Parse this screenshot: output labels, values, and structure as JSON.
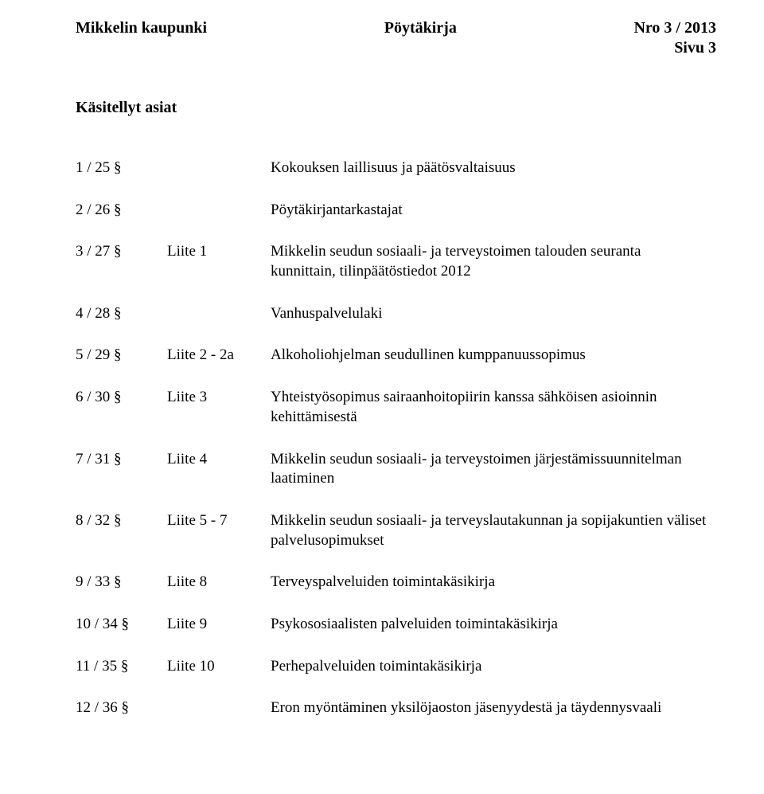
{
  "header": {
    "left": "Mikkelin kaupunki",
    "middle": "Pöytäkirja",
    "right": "Nro  3 / 2013",
    "sub": "Sivu  3"
  },
  "section_title": "Käsitellyt asiat",
  "items": [
    {
      "id": "1 / 25 §",
      "attachment": "",
      "text": "Kokouksen laillisuus ja päätösvaltaisuus"
    },
    {
      "id": "2 / 26 §",
      "attachment": "",
      "text": "Pöytäkirjantarkastajat"
    },
    {
      "id": "3 / 27 §",
      "attachment": "Liite 1",
      "text": "Mikkelin seudun sosiaali- ja terveystoimen talouden seuranta kunnittain, tilinpäätöstiedot 2012"
    },
    {
      "id": "4 / 28 §",
      "attachment": "",
      "text": "Vanhuspalvelulaki"
    },
    {
      "id": "5 / 29 §",
      "attachment": "Liite 2 - 2a",
      "text": "Alkoholiohjelman seudullinen kumppanuussopimus"
    },
    {
      "id": "6 / 30 §",
      "attachment": "Liite 3",
      "text": "Yhteistyösopimus sairaanhoitopiirin kanssa sähköisen asioinnin kehittämisestä"
    },
    {
      "id": "7 / 31 §",
      "attachment": "Liite 4",
      "text": "Mikkelin seudun sosiaali- ja terveystoimen järjestämissuunnitelman laatiminen"
    },
    {
      "id": "8 / 32 §",
      "attachment": "Liite 5 - 7",
      "text": "Mikkelin seudun sosiaali- ja terveyslautakunnan ja sopijakuntien väliset palvelusopimukset"
    },
    {
      "id": "9 / 33 §",
      "attachment": "Liite 8",
      "text": "Terveyspalveluiden toimintakäsikirja"
    },
    {
      "id": "10 / 34 §",
      "attachment": "Liite 9",
      "text": "Psykososiaalisten palveluiden toimintakäsikirja"
    },
    {
      "id": "11 / 35 §",
      "attachment": "Liite 10",
      "text": "Perhepalveluiden toimintakäsikirja"
    },
    {
      "id": "12 / 36 §",
      "attachment": "",
      "text": "Eron myöntäminen yksilöjaoston jäsenyydestä ja täydennysvaali"
    }
  ]
}
